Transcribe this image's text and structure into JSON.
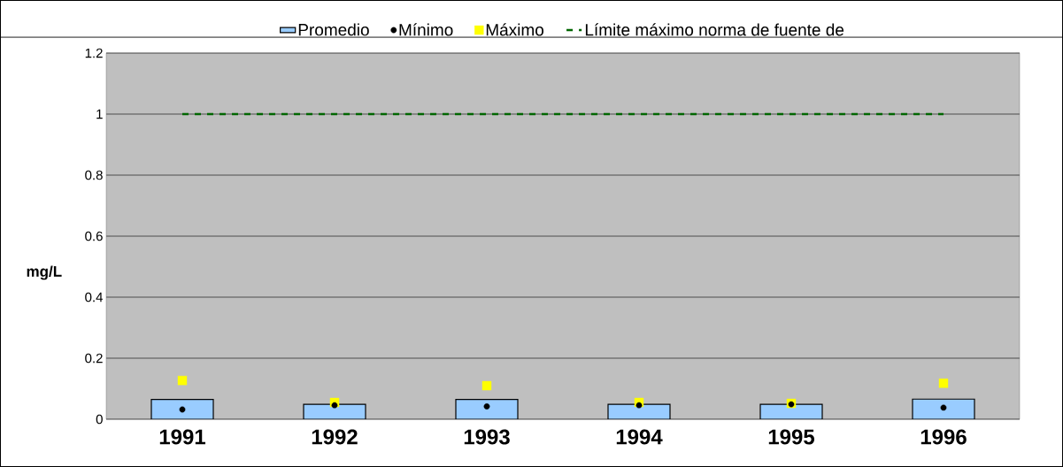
{
  "chart_data": {
    "type": "bar",
    "ylabel": "mg/L",
    "categories": [
      "1991",
      "1992",
      "1993",
      "1994",
      "1995",
      "1996"
    ],
    "series": [
      {
        "name": "Promedio",
        "color": "#99ccff",
        "values": [
          0.065,
          0.049,
          0.065,
          0.049,
          0.049,
          0.066
        ]
      },
      {
        "name": "Mínimo",
        "type": "scatter",
        "marker": "circle",
        "color": "#000000",
        "values": [
          0.032,
          0.046,
          0.042,
          0.046,
          0.049,
          0.038
        ]
      },
      {
        "name": "Máximo",
        "type": "scatter",
        "marker": "square",
        "color": "#ffff00",
        "values": [
          0.127,
          0.055,
          0.11,
          0.055,
          0.052,
          0.118
        ]
      }
    ],
    "ylim": [
      0,
      1.2
    ],
    "yticks": [
      0,
      0.2,
      0.4,
      0.6,
      0.8,
      1,
      1.2
    ],
    "grid": "y",
    "legend": "top",
    "ref_lines": [
      {
        "axis": "y",
        "value": 1,
        "label": "Límite máximo norma de fuente de",
        "color": "#006600",
        "line_style": "dashed"
      }
    ]
  }
}
